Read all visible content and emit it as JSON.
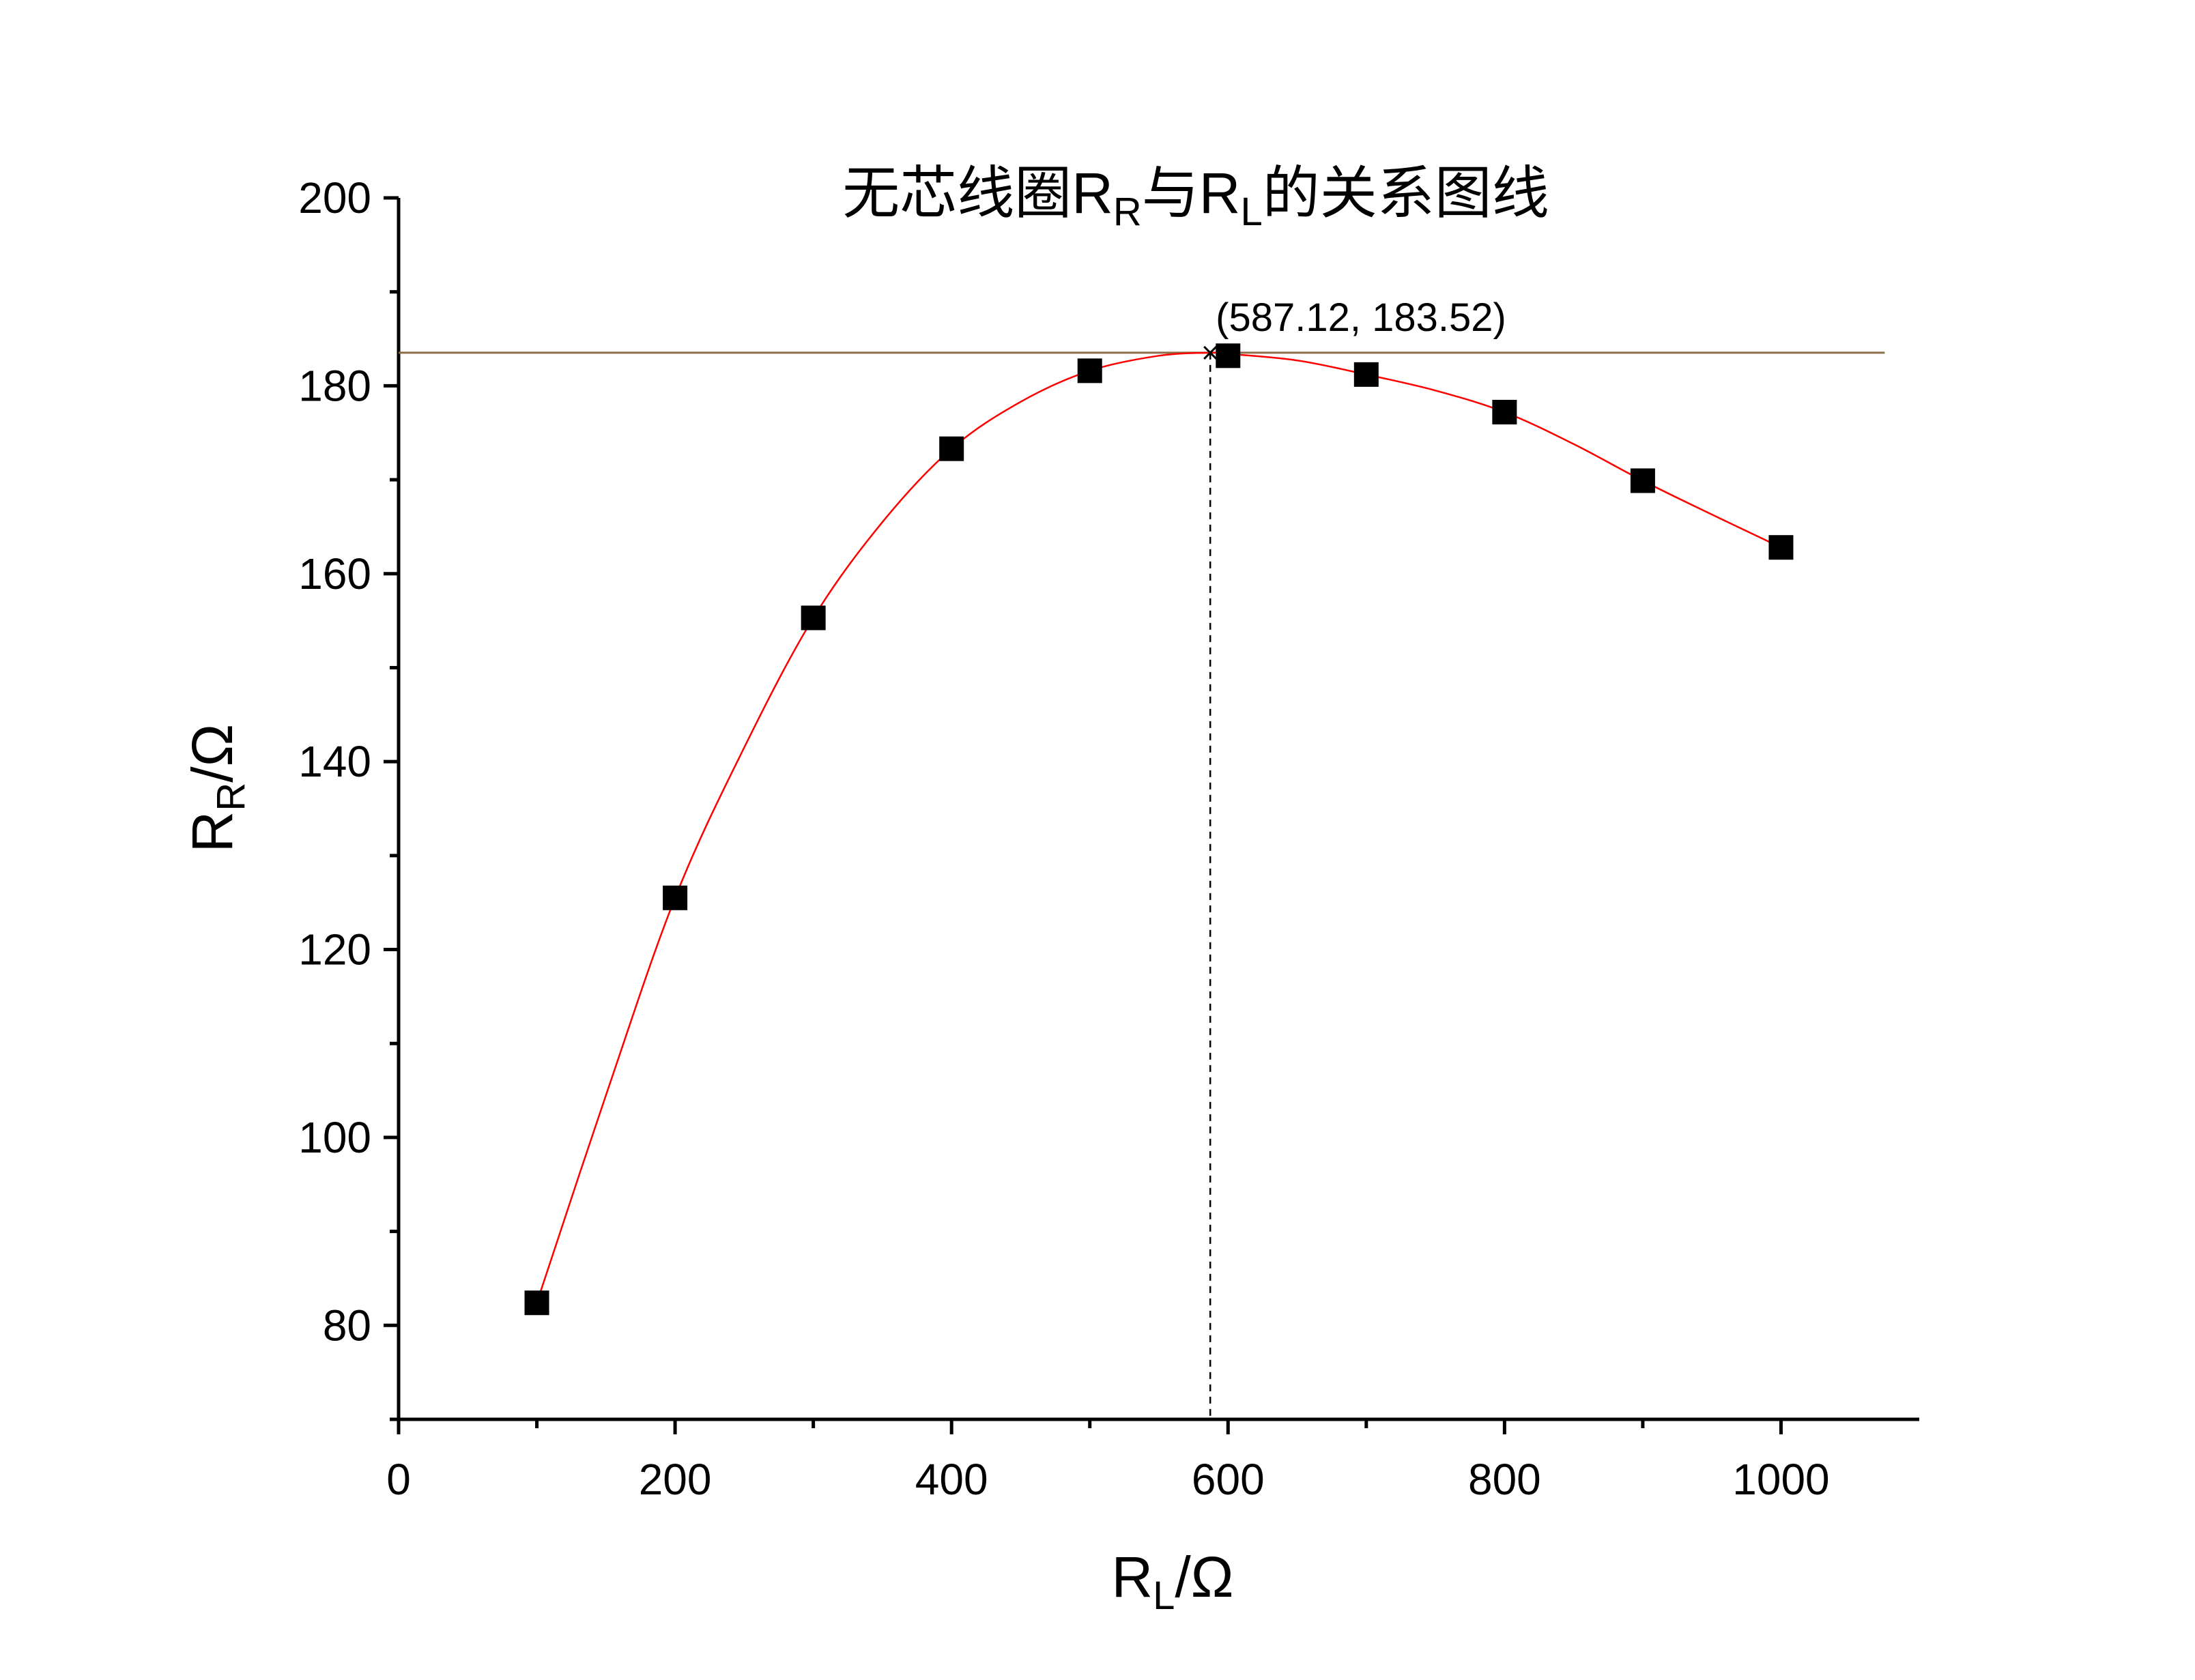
{
  "chart_data": {
    "type": "scatter",
    "title": {
      "prefix": "无芯线圈R",
      "sub1": "R",
      "mid": "与R",
      "sub2": "L",
      "suffix": "的关系图线"
    },
    "xlabel": {
      "main": "R",
      "sub": "L",
      "unit": "/Ω"
    },
    "ylabel": {
      "main": "R",
      "sub": "R",
      "unit": "/Ω"
    },
    "xlim": [
      0,
      1100
    ],
    "ylim": [
      70,
      200
    ],
    "x_ticks": [
      0,
      200,
      400,
      600,
      800,
      1000
    ],
    "y_ticks": [
      80,
      100,
      120,
      140,
      160,
      180,
      200
    ],
    "grid": false,
    "series": [
      {
        "marker": "square",
        "color": "#000000",
        "x": [
          100,
          200,
          300,
          400,
          500,
          600,
          700,
          800,
          900,
          1000
        ],
        "y": [
          82.4,
          125.5,
          155.3,
          173.3,
          181.6,
          183.2,
          181.2,
          177.2,
          169.9,
          162.8
        ]
      }
    ],
    "fit_curve": {
      "color": "#ff0000",
      "x": [
        100,
        150,
        200,
        250,
        300,
        350,
        400,
        450,
        500,
        550,
        587.12,
        600,
        650,
        700,
        750,
        800,
        850,
        900,
        950,
        1000
      ],
      "y": [
        82.4,
        104.5,
        125.5,
        141.5,
        155.3,
        165.5,
        173.3,
        178.3,
        181.6,
        183.2,
        183.52,
        183.4,
        182.7,
        181.2,
        179.5,
        177.2,
        173.8,
        169.9,
        166.3,
        162.8
      ]
    },
    "max_point": {
      "x": 587.12,
      "y": 183.52,
      "label": "(587.12, 183.52)"
    },
    "reference_line_color": "#8b6f47"
  }
}
